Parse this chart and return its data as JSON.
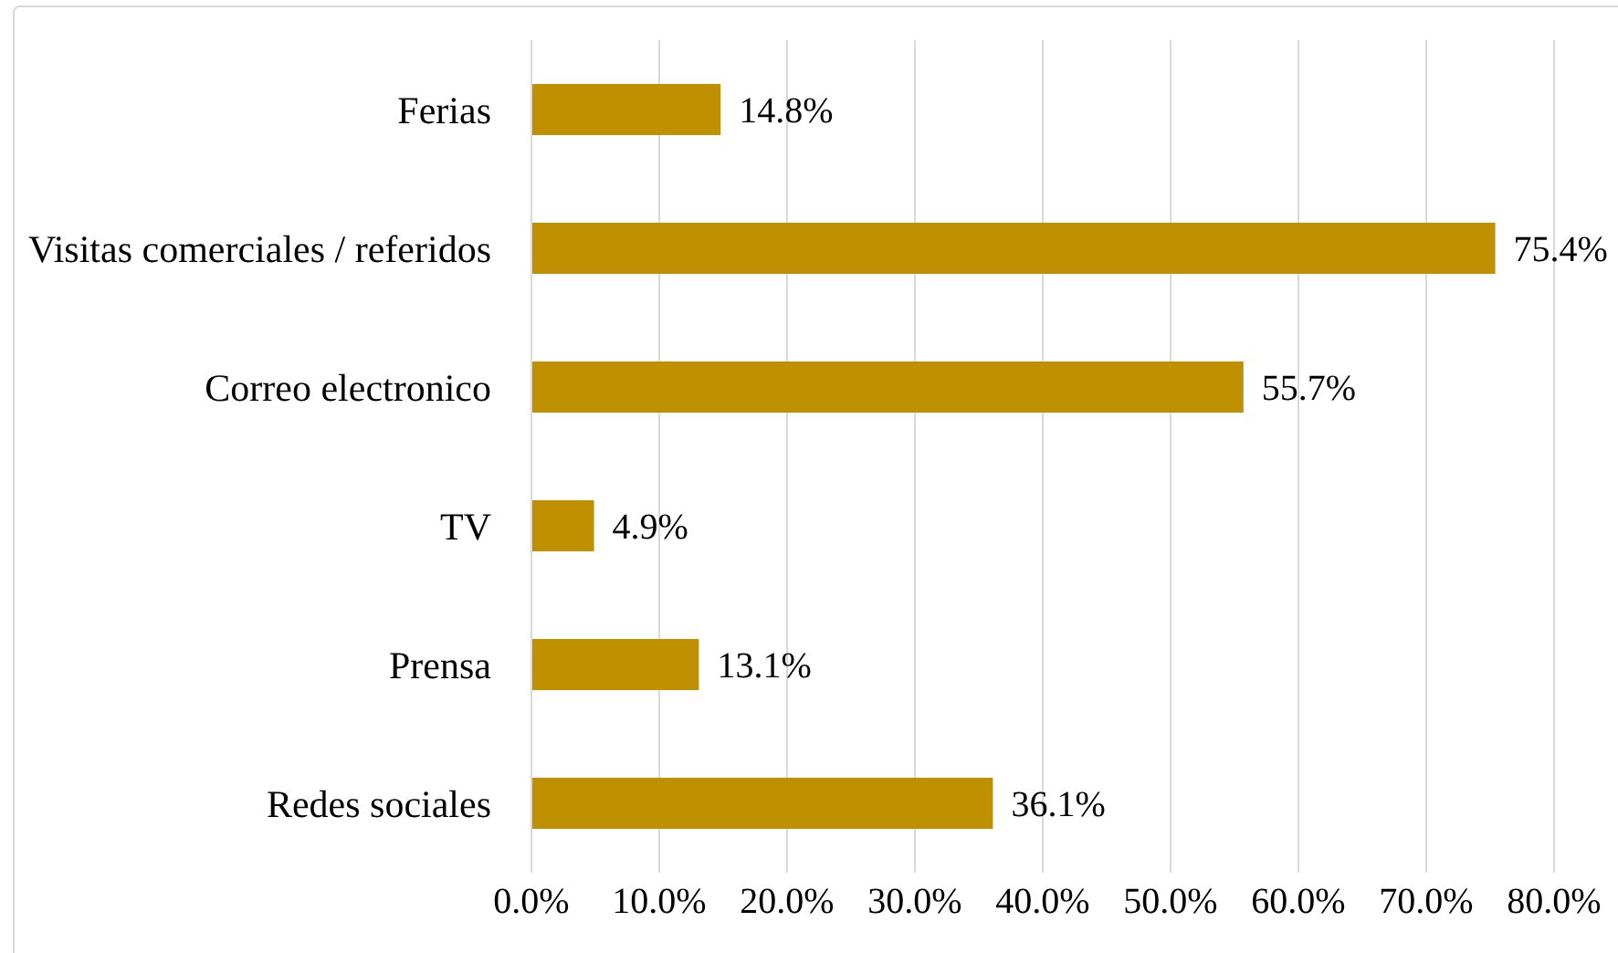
{
  "chart_data": {
    "type": "bar",
    "orientation": "horizontal",
    "categories": [
      "Ferias",
      "Visitas comerciales / referidos",
      "Correo electronico",
      "TV",
      "Prensa",
      "Redes sociales"
    ],
    "values": [
      14.8,
      75.4,
      55.7,
      4.9,
      13.1,
      36.1
    ],
    "value_labels": [
      "14.8%",
      "75.4%",
      "55.7%",
      "4.9%",
      "13.1%",
      "36.1%"
    ],
    "color": "#bf9000",
    "xlim": [
      0,
      80
    ],
    "xticks": [
      {
        "value": 0,
        "label": "0.0%"
      },
      {
        "value": 10,
        "label": "10.0%"
      },
      {
        "value": 20,
        "label": "20.0%"
      },
      {
        "value": 30,
        "label": "30.0%"
      },
      {
        "value": 40,
        "label": "40.0%"
      },
      {
        "value": 50,
        "label": "50.0%"
      },
      {
        "value": 60,
        "label": "60.0%"
      },
      {
        "value": 70,
        "label": "70.0%"
      },
      {
        "value": 80,
        "label": "80.0%"
      }
    ],
    "grid": "x"
  }
}
